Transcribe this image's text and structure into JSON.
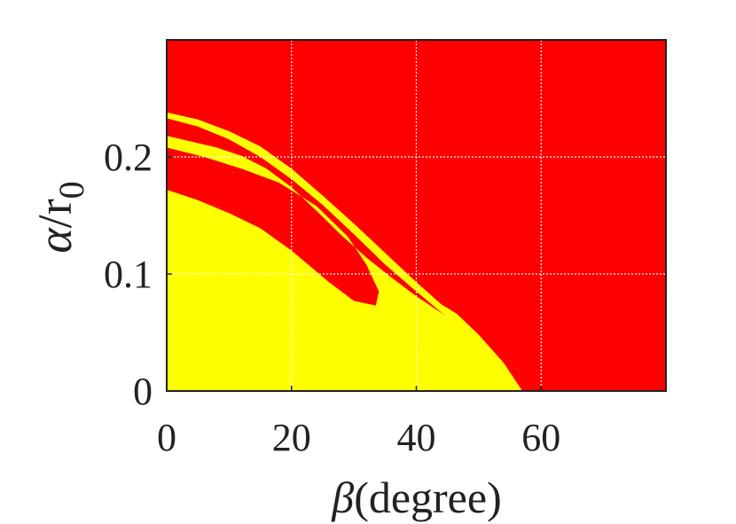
{
  "chart_data": {
    "type": "heatmap",
    "xlabel": {
      "symbol": "β",
      "text": "(degree)"
    },
    "ylabel": {
      "symbol": "α",
      "text": "/r",
      "sub": "0"
    },
    "xlim": [
      0,
      80
    ],
    "ylim": [
      0,
      0.3
    ],
    "x_ticks": [
      0,
      20,
      40,
      60
    ],
    "x_tick_labels": [
      "0",
      "20",
      "40",
      "60"
    ],
    "y_ticks": [
      0,
      0.1,
      0.2
    ],
    "y_tick_labels": [
      "0",
      "0.1",
      "0.2"
    ],
    "grid": true,
    "legend": "none",
    "colors": {
      "background_region": "#ff0000",
      "highlight_region": "#ffff00",
      "grid": "#ffffff",
      "axis": "#222222"
    },
    "regions": [
      {
        "color": "#ffff00",
        "points": [
          [
            0,
            0
          ],
          [
            57,
            0
          ],
          [
            54,
            0.024
          ],
          [
            50,
            0.048
          ],
          [
            46.5,
            0.066
          ],
          [
            44,
            0.074
          ],
          [
            40,
            0.093
          ],
          [
            35,
            0.118
          ],
          [
            30,
            0.143
          ],
          [
            25,
            0.167
          ],
          [
            20,
            0.19
          ],
          [
            15,
            0.209
          ],
          [
            10,
            0.222
          ],
          [
            5,
            0.232
          ],
          [
            0,
            0.238
          ],
          [
            0,
            0.233
          ],
          [
            5,
            0.226
          ],
          [
            10,
            0.215
          ],
          [
            15,
            0.2
          ],
          [
            20,
            0.181
          ],
          [
            25,
            0.159
          ],
          [
            30,
            0.134
          ],
          [
            35,
            0.108
          ],
          [
            40,
            0.085
          ],
          [
            44.5,
            0.065
          ],
          [
            40,
            0.081
          ],
          [
            36,
            0.097
          ],
          [
            32,
            0.114
          ],
          [
            28,
            0.133
          ],
          [
            24,
            0.154
          ],
          [
            20,
            0.174
          ],
          [
            16,
            0.19
          ],
          [
            12,
            0.201
          ],
          [
            8,
            0.208
          ],
          [
            4,
            0.213
          ],
          [
            0,
            0.218
          ],
          [
            0,
            0.208
          ],
          [
            6,
            0.2
          ],
          [
            12,
            0.19
          ],
          [
            18,
            0.178
          ],
          [
            24,
            0.158
          ],
          [
            29,
            0.132
          ],
          [
            32,
            0.108
          ],
          [
            34,
            0.085
          ],
          [
            33.5,
            0.073
          ],
          [
            30,
            0.077
          ],
          [
            26,
            0.093
          ],
          [
            20,
            0.12
          ],
          [
            15,
            0.139
          ],
          [
            10,
            0.152
          ],
          [
            5,
            0.163
          ],
          [
            0,
            0.172
          ]
        ]
      }
    ]
  }
}
